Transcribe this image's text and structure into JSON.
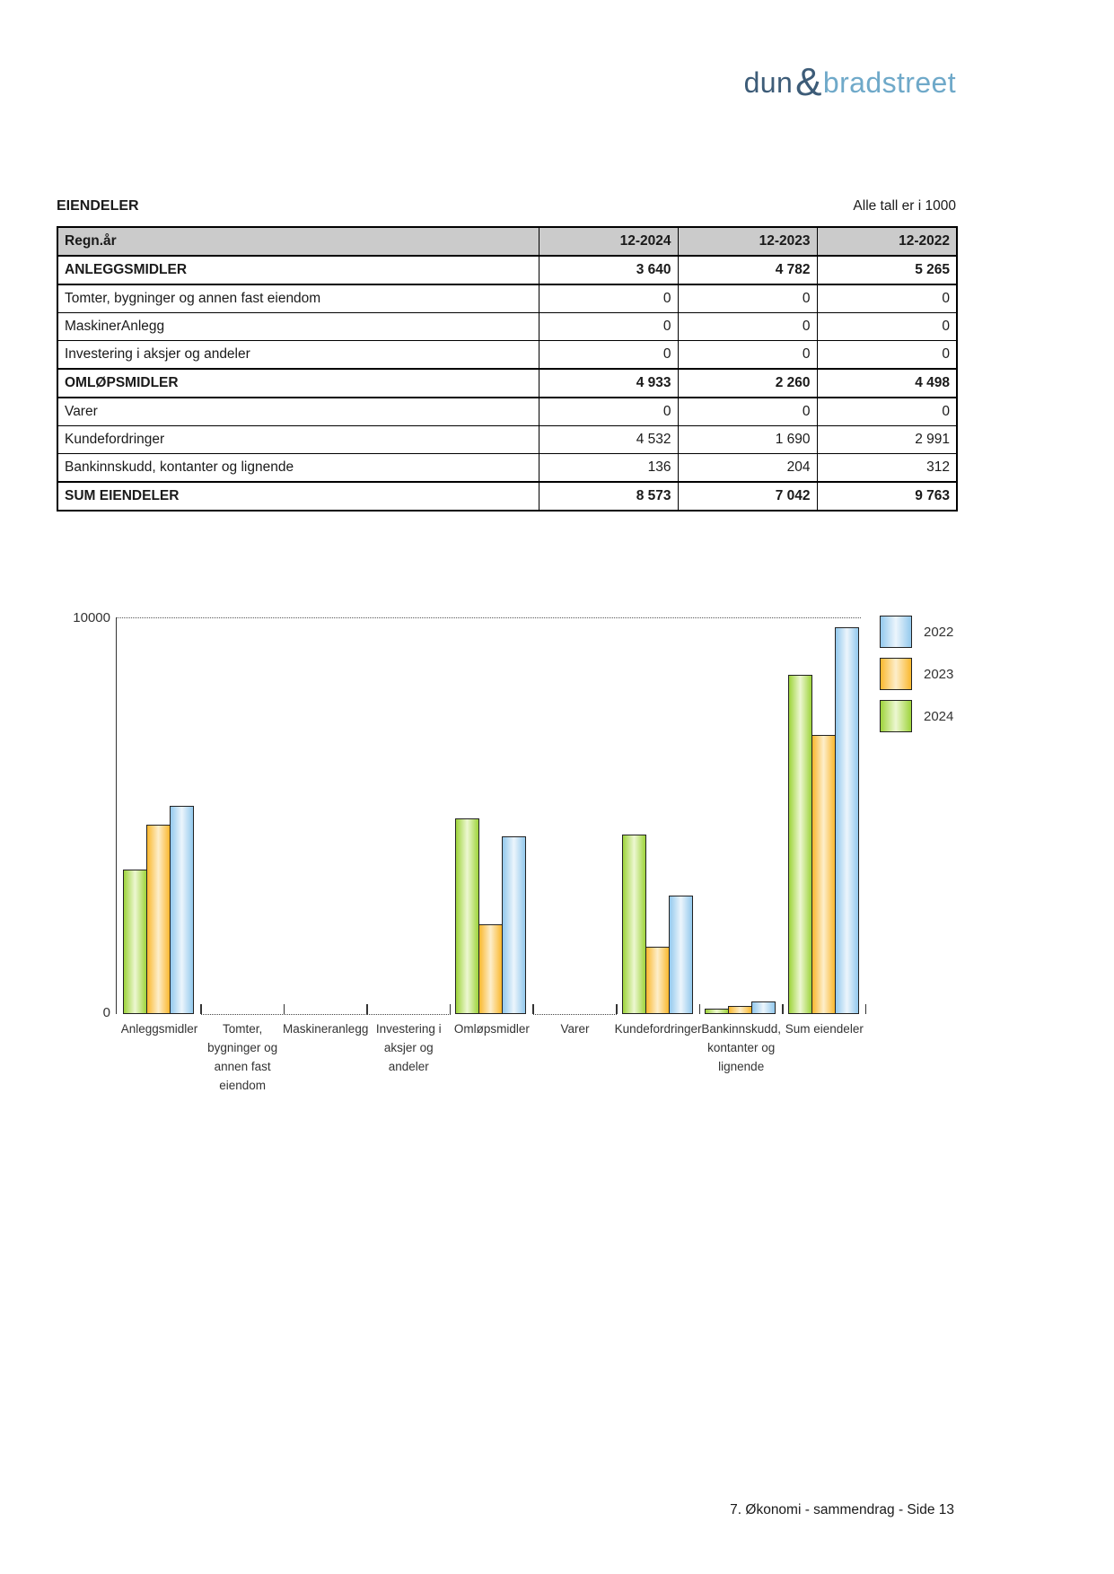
{
  "logo": {
    "part1": "dun",
    "amp": "&",
    "part2": "bradstreet",
    "color_dark": "#3d5c78",
    "color_light": "#6fa9c9"
  },
  "header": {
    "section_title": "EIENDELER",
    "units_note": "Alle tall er i 1000"
  },
  "table": {
    "header": {
      "label": "Regn.år",
      "cols": [
        "12-2024",
        "12-2023",
        "12-2022"
      ]
    },
    "rows": [
      {
        "label": "ANLEGGSMIDLER",
        "bold": true,
        "values": [
          "3 640",
          "4 782",
          "5 265"
        ]
      },
      {
        "label": "Tomter, bygninger og annen fast eiendom",
        "bold": false,
        "values": [
          "0",
          "0",
          "0"
        ]
      },
      {
        "label": "MaskinerAnlegg",
        "bold": false,
        "values": [
          "0",
          "0",
          "0"
        ]
      },
      {
        "label": "Investering i aksjer og andeler",
        "bold": false,
        "values": [
          "0",
          "0",
          "0"
        ]
      },
      {
        "label": "OMLØPSMIDLER",
        "bold": true,
        "values": [
          "4 933",
          "2 260",
          "4 498"
        ]
      },
      {
        "label": "Varer",
        "bold": false,
        "values": [
          "0",
          "0",
          "0"
        ]
      },
      {
        "label": "Kundefordringer",
        "bold": false,
        "values": [
          "4 532",
          "1 690",
          "2 991"
        ]
      },
      {
        "label": "Bankinnskudd, kontanter og lignende",
        "bold": false,
        "values": [
          "136",
          "204",
          "312"
        ]
      },
      {
        "label": "SUM EIENDELER",
        "bold": true,
        "values": [
          "8 573",
          "7 042",
          "9 763"
        ]
      }
    ]
  },
  "chart_data": {
    "type": "bar",
    "title": "",
    "xlabel": "",
    "ylabel": "",
    "ylim": [
      0,
      10000
    ],
    "yticks": [
      "10000",
      "0"
    ],
    "grid": "dotted-top-line-only",
    "legend_position": "top-right",
    "categories": [
      {
        "label": "Anleggsmidler",
        "lines": [
          "Anleggsmidler"
        ]
      },
      {
        "label": "Tomter, bygninger og annen fast eiendom",
        "lines": [
          "Tomter,",
          "bygninger og",
          "annen fast",
          "eiendom"
        ]
      },
      {
        "label": "Maskineranlegg",
        "lines": [
          "Maskineranlegg"
        ]
      },
      {
        "label": "Investering i aksjer og andeler",
        "lines": [
          "Investering i",
          "aksjer og",
          "andeler"
        ]
      },
      {
        "label": "Omløpsmidler",
        "lines": [
          "Omløpsmidler"
        ]
      },
      {
        "label": "Varer",
        "lines": [
          "Varer"
        ]
      },
      {
        "label": "Kundefordringer",
        "lines": [
          "Kundefordringer"
        ]
      },
      {
        "label": "Bankinnskudd, kontanter og lignende",
        "lines": [
          "Bankinnskudd,",
          "kontanter og",
          "lignende"
        ]
      },
      {
        "label": "Sum eiendeler",
        "lines": [
          "Sum eiendeler"
        ]
      }
    ],
    "series": [
      {
        "name": "2024",
        "edge_color": "#9ed43b",
        "light_color": "#edf7d2",
        "values": [
          3640,
          0,
          0,
          0,
          4933,
          0,
          4532,
          136,
          8573
        ]
      },
      {
        "name": "2023",
        "edge_color": "#fab82e",
        "light_color": "#fdeecb",
        "values": [
          4782,
          0,
          0,
          0,
          2260,
          0,
          1690,
          204,
          7042
        ]
      },
      {
        "name": "2022",
        "edge_color": "#93c9ed",
        "light_color": "#ecf5fc",
        "values": [
          5265,
          0,
          0,
          0,
          4498,
          0,
          2991,
          312,
          9763
        ]
      }
    ],
    "legend_order": [
      "2022",
      "2023",
      "2024"
    ]
  },
  "footer": {
    "text": "7. Økonomi - sammendrag - Side 13"
  }
}
